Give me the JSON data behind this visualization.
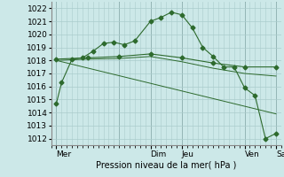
{
  "title": "",
  "xlabel": "Pression niveau de la mer( hPa )",
  "background_color": "#cce8e8",
  "grid_color": "#aacccc",
  "line_color": "#2d6a2d",
  "ylim": [
    1011.5,
    1022.5
  ],
  "yticks": [
    1012,
    1013,
    1014,
    1015,
    1016,
    1017,
    1018,
    1019,
    1020,
    1021,
    1022
  ],
  "xlim": [
    0,
    44
  ],
  "day_labels": [
    {
      "label": "Mer",
      "x": 1
    },
    {
      "label": "Dim",
      "x": 19
    },
    {
      "label": "Jeu",
      "x": 25
    },
    {
      "label": "Ven",
      "x": 37
    },
    {
      "label": "Sam",
      "x": 43
    }
  ],
  "vlines_x": [
    1,
    13,
    19,
    25,
    37,
    43
  ],
  "series1_x": [
    1,
    2,
    4,
    6,
    8,
    10,
    12,
    14,
    16,
    19,
    21,
    23,
    25,
    27,
    29,
    31,
    33,
    35,
    37,
    39,
    41,
    43
  ],
  "series1_y": [
    1014.7,
    1016.3,
    1018.1,
    1018.2,
    1018.7,
    1019.3,
    1019.4,
    1019.2,
    1019.5,
    1021.0,
    1021.3,
    1021.7,
    1021.5,
    1020.5,
    1019.0,
    1018.3,
    1017.5,
    1017.5,
    1015.9,
    1015.3,
    1012.0,
    1012.4
  ],
  "series2_x": [
    1,
    7,
    13,
    19,
    25,
    31,
    37,
    43
  ],
  "series2_y": [
    1018.1,
    1018.2,
    1018.3,
    1018.5,
    1018.2,
    1017.8,
    1017.5,
    1017.5
  ],
  "series3_x": [
    1,
    7,
    13,
    19,
    25,
    31,
    37,
    43
  ],
  "series3_y": [
    1018.0,
    1018.1,
    1018.15,
    1018.3,
    1017.9,
    1017.4,
    1017.0,
    1016.8
  ],
  "series4_x": [
    1,
    43
  ],
  "series4_y": [
    1018.0,
    1013.9
  ],
  "fontsize_label": 7,
  "fontsize_tick": 6.5
}
